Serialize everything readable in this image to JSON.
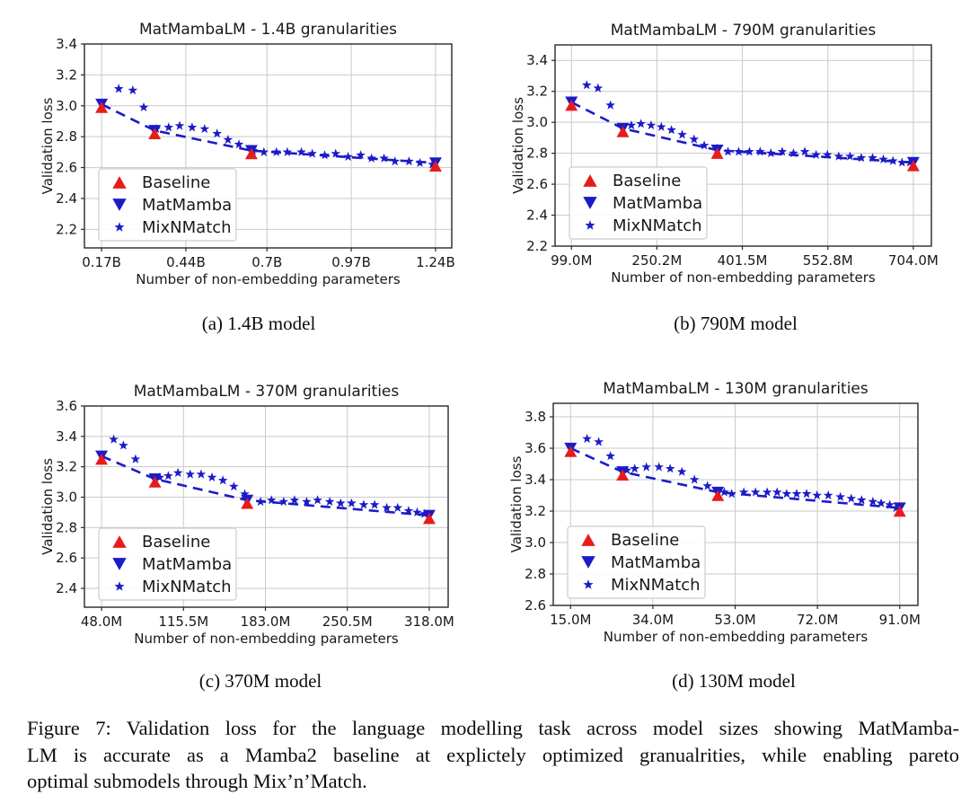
{
  "figure_caption": {
    "lines": [
      "Figure 7: Validation loss for the language modelling task across model sizes showing MatMamba-",
      "LM is accurate as a Mamba2 baseline at explictely optimized granualrities, while enabling pareto",
      "optimal submodels through Mix’n’Match."
    ]
  },
  "subcaptions": [
    "(a) 1.4B model",
    "(b) 790M model",
    "(c) 370M model",
    "(d) 130M model"
  ],
  "colors": {
    "baseline_red": "#e81b1b",
    "matmamba_blue": "#1b1bc8",
    "grid": "#c9c9c9",
    "axis": "#282828",
    "text": "#191919",
    "legend_border": "#cccccc"
  },
  "chart_data": [
    {
      "id": "a",
      "type": "scatter",
      "title": "MatMambaLM - 1.4B granularities",
      "xlabel": "Number of non-embedding parameters",
      "ylabel": "Validation loss",
      "xlim": [
        0.115,
        1.292
      ],
      "ylim": [
        2.08,
        3.4
      ],
      "grid": true,
      "xticks": {
        "values": [
          0.17,
          0.44,
          0.7,
          0.97,
          1.24
        ],
        "labels": [
          "0.17B",
          "0.44B",
          "0.7B",
          "0.97B",
          "1.24B"
        ]
      },
      "yticks": {
        "values": [
          2.2,
          2.4,
          2.6,
          2.8,
          3.0,
          3.2,
          3.4
        ],
        "labels": [
          "2.2",
          "2.4",
          "2.6",
          "2.8",
          "3.0",
          "3.2",
          "3.4"
        ]
      },
      "legend": {
        "position": "lower-left",
        "entries": [
          "Baseline",
          "MatMamba",
          "MixNMatch"
        ]
      },
      "series": [
        {
          "name": "Baseline",
          "marker": "triangle-up",
          "color": "#e81b1b",
          "points": [
            [
              0.17,
              2.99
            ],
            [
              0.34,
              2.82
            ],
            [
              0.65,
              2.69
            ],
            [
              1.24,
              2.61
            ]
          ]
        },
        {
          "name": "MatMamba",
          "marker": "triangle-down",
          "color": "#1b1bc8",
          "line": "dashed",
          "points": [
            [
              0.17,
              3.01
            ],
            [
              0.34,
              2.84
            ],
            [
              0.65,
              2.71
            ],
            [
              1.24,
              2.63
            ]
          ]
        },
        {
          "name": "MixNMatch",
          "marker": "star",
          "color": "#1b1bc8",
          "points": [
            [
              0.225,
              3.11
            ],
            [
              0.27,
              3.1
            ],
            [
              0.305,
              2.99
            ],
            [
              0.345,
              2.85
            ],
            [
              0.385,
              2.86
            ],
            [
              0.42,
              2.87
            ],
            [
              0.46,
              2.86
            ],
            [
              0.5,
              2.85
            ],
            [
              0.54,
              2.82
            ],
            [
              0.575,
              2.78
            ],
            [
              0.61,
              2.75
            ],
            [
              0.655,
              2.71
            ],
            [
              0.69,
              2.7
            ],
            [
              0.73,
              2.7
            ],
            [
              0.765,
              2.7
            ],
            [
              0.81,
              2.7
            ],
            [
              0.845,
              2.69
            ],
            [
              0.885,
              2.68
            ],
            [
              0.92,
              2.69
            ],
            [
              0.96,
              2.67
            ],
            [
              1.0,
              2.68
            ],
            [
              1.035,
              2.66
            ],
            [
              1.075,
              2.66
            ],
            [
              1.11,
              2.64
            ],
            [
              1.155,
              2.64
            ],
            [
              1.19,
              2.63
            ],
            [
              1.23,
              2.62
            ]
          ]
        }
      ]
    },
    {
      "id": "b",
      "type": "scatter",
      "title": "MatMambaLM - 790M granularities",
      "xlabel": "Number of non-embedding parameters",
      "ylabel": "Validation loss",
      "xlim": [
        70,
        736
      ],
      "ylim": [
        2.2,
        3.5
      ],
      "grid": true,
      "xticks": {
        "values": [
          99.0,
          250.2,
          401.5,
          552.8,
          704.0
        ],
        "labels": [
          "99.0M",
          "250.2M",
          "401.5M",
          "552.8M",
          "704.0M"
        ]
      },
      "yticks": {
        "values": [
          2.2,
          2.4,
          2.6,
          2.8,
          3.0,
          3.2,
          3.4
        ],
        "labels": [
          "2.2",
          "2.4",
          "2.6",
          "2.8",
          "3.0",
          "3.2",
          "3.4"
        ]
      },
      "legend": {
        "position": "lower-left",
        "entries": [
          "Baseline",
          "MatMamba",
          "MixNMatch"
        ]
      },
      "series": [
        {
          "name": "Baseline",
          "marker": "triangle-up",
          "color": "#e81b1b",
          "points": [
            [
              99,
              3.11
            ],
            [
              190,
              2.94
            ],
            [
              357,
              2.8
            ],
            [
              704,
              2.72
            ]
          ]
        },
        {
          "name": "MatMamba",
          "marker": "triangle-down",
          "color": "#1b1bc8",
          "line": "dashed",
          "points": [
            [
              99,
              3.13
            ],
            [
              190,
              2.96
            ],
            [
              357,
              2.82
            ],
            [
              704,
              2.74
            ]
          ]
        },
        {
          "name": "MixNMatch",
          "marker": "star",
          "color": "#1b1bc8",
          "points": [
            [
              126,
              3.24
            ],
            [
              146,
              3.22
            ],
            [
              168,
              3.11
            ],
            [
              205,
              2.98
            ],
            [
              222,
              2.99
            ],
            [
              240,
              2.98
            ],
            [
              258,
              2.97
            ],
            [
              276,
              2.95
            ],
            [
              295,
              2.92
            ],
            [
              316,
              2.89
            ],
            [
              334,
              2.85
            ],
            [
              357,
              2.83
            ],
            [
              376,
              2.81
            ],
            [
              395,
              2.81
            ],
            [
              414,
              2.81
            ],
            [
              433,
              2.81
            ],
            [
              452,
              2.8
            ],
            [
              472,
              2.81
            ],
            [
              492,
              2.8
            ],
            [
              512,
              2.81
            ],
            [
              532,
              2.79
            ],
            [
              552,
              2.79
            ],
            [
              572,
              2.78
            ],
            [
              592,
              2.78
            ],
            [
              612,
              2.77
            ],
            [
              632,
              2.77
            ],
            [
              651,
              2.76
            ],
            [
              668,
              2.75
            ],
            [
              684,
              2.74
            ],
            [
              698,
              2.74
            ]
          ]
        }
      ]
    },
    {
      "id": "c",
      "type": "scatter",
      "title": "MatMambaLM - 370M granularities",
      "xlabel": "Number of non-embedding parameters",
      "ylabel": "Validation loss",
      "xlim": [
        33.9,
        333.6
      ],
      "ylim": [
        2.276,
        3.6
      ],
      "grid": true,
      "xticks": {
        "values": [
          48.0,
          115.5,
          183.0,
          250.5,
          318.0
        ],
        "labels": [
          "48.0M",
          "115.5M",
          "183.0M",
          "250.5M",
          "318.0M"
        ]
      },
      "yticks": {
        "values": [
          2.4,
          2.6,
          2.8,
          3.0,
          3.2,
          3.4,
          3.6
        ],
        "labels": [
          "2.4",
          "2.6",
          "2.8",
          "3.0",
          "3.2",
          "3.4",
          "3.6"
        ]
      },
      "legend": {
        "position": "lower-left",
        "entries": [
          "Baseline",
          "MatMamba",
          "MixNMatch"
        ]
      },
      "series": [
        {
          "name": "Baseline",
          "marker": "triangle-up",
          "color": "#e81b1b",
          "points": [
            [
              48,
              3.25
            ],
            [
              92,
              3.1
            ],
            [
              168,
              2.96
            ],
            [
              318,
              2.86
            ]
          ]
        },
        {
          "name": "MatMamba",
          "marker": "triangle-down",
          "color": "#1b1bc8",
          "line": "dashed",
          "points": [
            [
              48,
              3.27
            ],
            [
              92,
              3.12
            ],
            [
              168,
              2.98
            ],
            [
              318,
              2.88
            ]
          ]
        },
        {
          "name": "MixNMatch",
          "marker": "star",
          "color": "#1b1bc8",
          "points": [
            [
              58,
              3.38
            ],
            [
              66,
              3.34
            ],
            [
              76,
              3.25
            ],
            [
              96,
              3.13
            ],
            [
              103,
              3.14
            ],
            [
              111,
              3.16
            ],
            [
              121,
              3.15
            ],
            [
              130,
              3.15
            ],
            [
              139,
              3.13
            ],
            [
              148,
              3.11
            ],
            [
              157,
              3.07
            ],
            [
              166,
              3.02
            ],
            [
              179,
              2.97
            ],
            [
              188,
              2.98
            ],
            [
              198,
              2.97
            ],
            [
              207,
              2.98
            ],
            [
              217,
              2.97
            ],
            [
              226,
              2.98
            ],
            [
              236,
              2.97
            ],
            [
              245,
              2.96
            ],
            [
              254,
              2.96
            ],
            [
              264,
              2.95
            ],
            [
              273,
              2.95
            ],
            [
              283,
              2.93
            ],
            [
              292,
              2.93
            ],
            [
              301,
              2.91
            ],
            [
              308,
              2.9
            ],
            [
              314,
              2.89
            ]
          ]
        }
      ]
    },
    {
      "id": "d",
      "type": "scatter",
      "title": "MatMambaLM - 130M granularities",
      "xlabel": "Number of non-embedding parameters",
      "ylabel": "Validation loss",
      "xlim": [
        11.0,
        95.2
      ],
      "ylim": [
        2.6,
        3.886
      ],
      "grid": true,
      "xticks": {
        "values": [
          15.0,
          34.0,
          53.0,
          72.0,
          91.0
        ],
        "labels": [
          "15.0M",
          "34.0M",
          "53.0M",
          "72.0M",
          "91.0M"
        ]
      },
      "yticks": {
        "values": [
          2.6,
          2.8,
          3.0,
          3.2,
          3.4,
          3.6,
          3.8
        ],
        "labels": [
          "2.6",
          "2.8",
          "3.0",
          "3.2",
          "3.4",
          "3.6",
          "3.8"
        ]
      },
      "legend": {
        "position": "lower-left",
        "entries": [
          "Baseline",
          "MatMamba",
          "MixNMatch"
        ]
      },
      "series": [
        {
          "name": "Baseline",
          "marker": "triangle-up",
          "color": "#e81b1b",
          "points": [
            [
              15,
              3.58
            ],
            [
              27,
              3.43
            ],
            [
              49,
              3.3
            ],
            [
              91,
              3.2
            ]
          ]
        },
        {
          "name": "MatMamba",
          "marker": "triangle-down",
          "color": "#1b1bc8",
          "line": "dashed",
          "points": [
            [
              15,
              3.6
            ],
            [
              27,
              3.45
            ],
            [
              49,
              3.32
            ],
            [
              91,
              3.22
            ]
          ]
        },
        {
          "name": "MixNMatch",
          "marker": "star",
          "color": "#1b1bc8",
          "points": [
            [
              18.8,
              3.66
            ],
            [
              21.5,
              3.64
            ],
            [
              24.2,
              3.55
            ],
            [
              28.0,
              3.46
            ],
            [
              29.8,
              3.47
            ],
            [
              32.5,
              3.48
            ],
            [
              35.4,
              3.48
            ],
            [
              38.0,
              3.47
            ],
            [
              40.7,
              3.45
            ],
            [
              43.6,
              3.4
            ],
            [
              46.6,
              3.36
            ],
            [
              50.5,
              3.32
            ],
            [
              52.2,
              3.31
            ],
            [
              55.0,
              3.32
            ],
            [
              57.7,
              3.32
            ],
            [
              60.4,
              3.32
            ],
            [
              62.7,
              3.32
            ],
            [
              64.9,
              3.31
            ],
            [
              67.2,
              3.31
            ],
            [
              69.5,
              3.31
            ],
            [
              71.9,
              3.3
            ],
            [
              74.5,
              3.3
            ],
            [
              77.3,
              3.29
            ],
            [
              79.8,
              3.28
            ],
            [
              82.2,
              3.27
            ],
            [
              84.8,
              3.26
            ],
            [
              86.7,
              3.25
            ],
            [
              88.7,
              3.24
            ],
            [
              90.2,
              3.22
            ]
          ]
        }
      ]
    }
  ]
}
